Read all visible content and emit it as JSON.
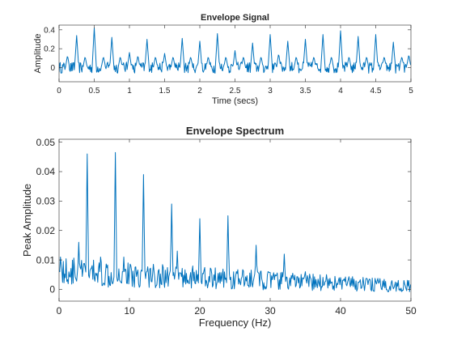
{
  "figure": {
    "background": "#ffffff"
  },
  "chart_data": [
    {
      "type": "line",
      "title": "Envelope Signal",
      "xlabel": "Time (secs)",
      "ylabel": "Amplitude",
      "xlim": [
        0,
        5
      ],
      "ylim": [
        -0.15,
        0.45
      ],
      "xticks": [
        0,
        0.5,
        1,
        1.5,
        2,
        2.5,
        3,
        3.5,
        4,
        4.5,
        5
      ],
      "xtick_labels": [
        "0",
        "0.5",
        "1",
        "1.5",
        "2",
        "2.5",
        "3",
        "3.5",
        "4",
        "4.5",
        "5"
      ],
      "yticks": [
        0,
        0.2,
        0.4
      ],
      "ytick_labels": [
        "0",
        "0.2",
        "0.4"
      ],
      "grid": false,
      "color": "#0072BD",
      "noise_floor": 0.0,
      "noise_amplitude": 0.06,
      "peaks": [
        {
          "x": 0.12,
          "y": 0.13
        },
        {
          "x": 0.25,
          "y": 0.34
        },
        {
          "x": 0.37,
          "y": 0.12
        },
        {
          "x": 0.5,
          "y": 0.42
        },
        {
          "x": 0.63,
          "y": 0.12
        },
        {
          "x": 0.75,
          "y": 0.32
        },
        {
          "x": 0.87,
          "y": 0.12
        },
        {
          "x": 1.0,
          "y": 0.16
        },
        {
          "x": 1.12,
          "y": 0.13
        },
        {
          "x": 1.25,
          "y": 0.3
        },
        {
          "x": 1.37,
          "y": 0.12
        },
        {
          "x": 1.5,
          "y": 0.15
        },
        {
          "x": 1.62,
          "y": 0.12
        },
        {
          "x": 1.75,
          "y": 0.31
        },
        {
          "x": 1.87,
          "y": 0.12
        },
        {
          "x": 2.0,
          "y": 0.28
        },
        {
          "x": 2.12,
          "y": 0.12
        },
        {
          "x": 2.25,
          "y": 0.36
        },
        {
          "x": 2.37,
          "y": 0.12
        },
        {
          "x": 2.5,
          "y": 0.18
        },
        {
          "x": 2.62,
          "y": 0.12
        },
        {
          "x": 2.75,
          "y": 0.26
        },
        {
          "x": 2.87,
          "y": 0.12
        },
        {
          "x": 3.0,
          "y": 0.35
        },
        {
          "x": 3.12,
          "y": 0.15
        },
        {
          "x": 3.25,
          "y": 0.28
        },
        {
          "x": 3.37,
          "y": 0.12
        },
        {
          "x": 3.5,
          "y": 0.3
        },
        {
          "x": 3.62,
          "y": 0.12
        },
        {
          "x": 3.75,
          "y": 0.35
        },
        {
          "x": 3.87,
          "y": 0.12
        },
        {
          "x": 4.0,
          "y": 0.39
        },
        {
          "x": 4.12,
          "y": 0.12
        },
        {
          "x": 4.25,
          "y": 0.33
        },
        {
          "x": 4.37,
          "y": 0.12
        },
        {
          "x": 4.5,
          "y": 0.35
        },
        {
          "x": 4.62,
          "y": 0.12
        },
        {
          "x": 4.75,
          "y": 0.27
        },
        {
          "x": 4.87,
          "y": 0.12
        },
        {
          "x": 4.97,
          "y": 0.14
        }
      ]
    },
    {
      "type": "line",
      "title": "Envelope Spectrum",
      "xlabel": "Frequency (Hz)",
      "ylabel": "Peak Amplitude",
      "xlim": [
        0,
        50
      ],
      "ylim": [
        -0.004,
        0.051
      ],
      "xticks": [
        0,
        10,
        20,
        30,
        40,
        50
      ],
      "xtick_labels": [
        "0",
        "10",
        "20",
        "30",
        "40",
        "50"
      ],
      "yticks": [
        0,
        0.01,
        0.02,
        0.03,
        0.04,
        0.05
      ],
      "ytick_labels": [
        "0",
        "0.01",
        "0.02",
        "0.03",
        "0.04",
        "0.05"
      ],
      "grid": false,
      "color": "#0072BD",
      "noise_floor": 0.006,
      "noise_floor_end": 0.001,
      "noise_amplitude": 0.005,
      "peaks": [
        {
          "x": 0.2,
          "y": 0.011
        },
        {
          "x": 2.8,
          "y": 0.016
        },
        {
          "x": 4.0,
          "y": 0.046
        },
        {
          "x": 5.9,
          "y": 0.011
        },
        {
          "x": 8.0,
          "y": 0.0465
        },
        {
          "x": 9.2,
          "y": 0.011
        },
        {
          "x": 12.0,
          "y": 0.039
        },
        {
          "x": 16.0,
          "y": 0.029
        },
        {
          "x": 16.8,
          "y": 0.013
        },
        {
          "x": 20.0,
          "y": 0.024
        },
        {
          "x": 24.0,
          "y": 0.025
        },
        {
          "x": 28.0,
          "y": 0.015
        },
        {
          "x": 32.0,
          "y": 0.012
        },
        {
          "x": 35.0,
          "y": 0.006
        },
        {
          "x": 38.0,
          "y": 0.005
        },
        {
          "x": 44.0,
          "y": 0.003
        }
      ]
    }
  ]
}
